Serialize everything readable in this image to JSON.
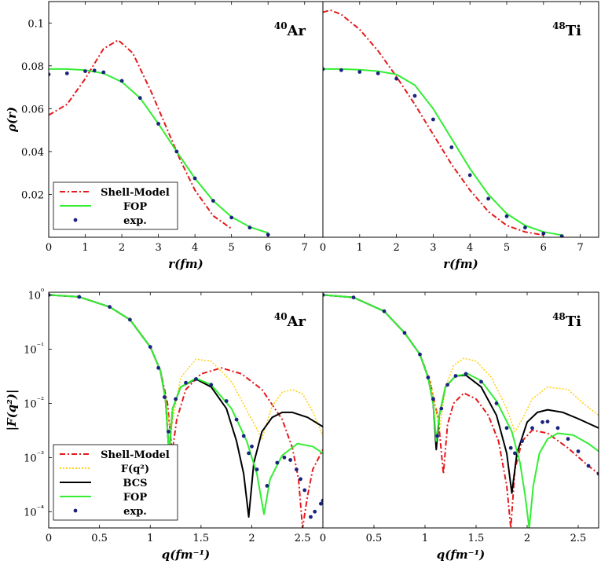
{
  "chart_data": [
    {
      "type": "line",
      "panel": "top-left",
      "nucleus": {
        "mass": "40",
        "symbol": "Ar"
      },
      "xlabel": "r(fm)",
      "ylabel": "ρ(r)",
      "xlim": [
        0,
        7.5
      ],
      "ylim": [
        0,
        0.11
      ],
      "xticks": [
        0,
        1,
        2,
        3,
        4,
        5,
        6,
        7
      ],
      "xtick_labels": [
        "0",
        "1",
        "2",
        "3",
        "4",
        "5",
        "6",
        "7"
      ],
      "yticks": [
        0.02,
        0.04,
        0.06,
        0.08,
        0.1
      ],
      "ytick_labels": [
        "0.02",
        "0.04",
        "0.06",
        "0.08",
        "0.1"
      ],
      "legend": "bottom-left",
      "series": [
        {
          "name": "Shell-Model",
          "style": "dashdot",
          "color": "#e41a1c",
          "x": [
            0,
            0.5,
            1.0,
            1.5,
            1.9,
            2.3,
            2.8,
            3.2,
            3.6,
            4.0,
            4.5,
            5.0
          ],
          "y": [
            0.057,
            0.062,
            0.074,
            0.088,
            0.092,
            0.086,
            0.068,
            0.052,
            0.036,
            0.022,
            0.01,
            0.004
          ]
        },
        {
          "name": "FOP",
          "style": "solid",
          "color": "#33ee33",
          "x": [
            0,
            0.5,
            1.0,
            1.5,
            2.0,
            2.5,
            3.0,
            3.5,
            4.0,
            4.5,
            5.0,
            5.5,
            6.0
          ],
          "y": [
            0.0785,
            0.0785,
            0.078,
            0.0765,
            0.0725,
            0.065,
            0.053,
            0.04,
            0.0275,
            0.017,
            0.0095,
            0.0048,
            0.002
          ]
        },
        {
          "name": "exp.",
          "style": "dots",
          "color": "#1a237e",
          "x": [
            0,
            0.5,
            1.0,
            1.25,
            1.5,
            2.0,
            2.5,
            3.0,
            3.5,
            4.0,
            4.5,
            5.0,
            5.5,
            6.0
          ],
          "y": [
            0.076,
            0.0765,
            0.0775,
            0.0778,
            0.077,
            0.073,
            0.065,
            0.053,
            0.04,
            0.0275,
            0.017,
            0.0092,
            0.0045,
            0.0012
          ]
        }
      ]
    },
    {
      "type": "line",
      "panel": "top-right",
      "nucleus": {
        "mass": "48",
        "symbol": "Ti"
      },
      "xlabel": "r(fm)",
      "xlim": [
        0,
        7.5
      ],
      "ylim": [
        0,
        0.11
      ],
      "xticks": [
        0,
        1,
        2,
        3,
        4,
        5,
        6,
        7
      ],
      "xtick_labels": [
        "0",
        "1",
        "2",
        "3",
        "4",
        "5",
        "6",
        "7"
      ],
      "series": [
        {
          "name": "Shell-Model",
          "style": "dashdot",
          "color": "#e41a1c",
          "x": [
            0,
            0.2,
            0.5,
            1.0,
            1.5,
            2.0,
            2.5,
            3.0,
            3.5,
            4.0,
            4.5,
            5.0,
            5.5,
            6.0
          ],
          "y": [
            0.105,
            0.106,
            0.104,
            0.097,
            0.087,
            0.075,
            0.062,
            0.048,
            0.034,
            0.022,
            0.012,
            0.0055,
            0.0025,
            0.001
          ]
        },
        {
          "name": "FOP",
          "style": "solid",
          "color": "#33ee33",
          "x": [
            0,
            0.5,
            1.0,
            1.5,
            2.0,
            2.5,
            3.0,
            3.5,
            4.0,
            4.5,
            5.0,
            5.5,
            6.0,
            6.5
          ],
          "y": [
            0.0785,
            0.0785,
            0.0782,
            0.0775,
            0.076,
            0.071,
            0.06,
            0.046,
            0.032,
            0.02,
            0.011,
            0.0055,
            0.0025,
            0.001
          ]
        },
        {
          "name": "exp.",
          "style": "dots",
          "color": "#1a237e",
          "x": [
            0,
            0.5,
            1.0,
            1.5,
            2.0,
            2.5,
            3.0,
            3.5,
            4.0,
            4.5,
            5.0,
            5.5,
            6.0,
            6.5
          ],
          "y": [
            0.0785,
            0.078,
            0.0772,
            0.0765,
            0.074,
            0.066,
            0.055,
            0.042,
            0.029,
            0.018,
            0.0098,
            0.0045,
            0.0018,
            0.0005
          ]
        }
      ]
    },
    {
      "type": "line",
      "panel": "bottom-left",
      "nucleus": {
        "mass": "40",
        "symbol": "Ar"
      },
      "xlabel": "q(fm⁻¹)",
      "ylabel": "|F(q²)|",
      "yscale": "log",
      "xlim": [
        0,
        2.7
      ],
      "ylim_log10": [
        -4.3,
        0.05
      ],
      "xticks": [
        0,
        0.5,
        1,
        1.5,
        2,
        2.5
      ],
      "xtick_labels": [
        "0",
        "0.5",
        "1",
        "1.5",
        "2",
        "2.5"
      ],
      "yticks_log10": [
        0,
        -1,
        -2,
        -3,
        -4
      ],
      "ytick_labels": [
        "10⁰",
        "10⁻¹",
        "10⁻²",
        "10⁻³",
        "10⁻⁴"
      ],
      "legend": "bottom-left",
      "series": [
        {
          "name": "Shell-Model",
          "style": "dashdot",
          "color": "#e41a1c",
          "x": [
            0,
            0.3,
            0.6,
            0.8,
            1.0,
            1.1,
            1.17,
            1.215,
            1.26,
            1.35,
            1.5,
            1.7,
            1.9,
            2.1,
            2.3,
            2.4,
            2.46,
            2.5,
            2.55,
            2.6,
            2.7
          ],
          "y": [
            1,
            0.92,
            0.6,
            0.35,
            0.11,
            0.04,
            0.01,
            0.0012,
            0.005,
            0.018,
            0.035,
            0.045,
            0.035,
            0.018,
            0.005,
            0.0015,
            0.0004,
            5e-05,
            0.0002,
            0.0006,
            0.0014
          ]
        },
        {
          "name": "F(q²)",
          "style": "dotted",
          "color": "#ffd21a",
          "x": [
            0,
            0.3,
            0.6,
            0.8,
            1.0,
            1.1,
            1.15,
            1.2,
            1.3,
            1.45,
            1.6,
            1.8,
            2.0,
            2.1,
            2.2,
            2.3,
            2.4,
            2.5,
            2.6,
            2.7
          ],
          "y": [
            1,
            0.92,
            0.6,
            0.35,
            0.11,
            0.04,
            0.012,
            0.003,
            0.03,
            0.065,
            0.06,
            0.025,
            0.005,
            0.0022,
            0.009,
            0.016,
            0.018,
            0.015,
            0.007,
            0.0025
          ]
        },
        {
          "name": "BCS",
          "style": "solid",
          "color": "#000000",
          "x": [
            0,
            0.3,
            0.6,
            0.8,
            1.0,
            1.1,
            1.15,
            1.185,
            1.22,
            1.3,
            1.45,
            1.6,
            1.75,
            1.85,
            1.92,
            1.97,
            2.02,
            2.1,
            2.2,
            2.3,
            2.4,
            2.55,
            2.7
          ],
          "y": [
            1,
            0.92,
            0.6,
            0.35,
            0.11,
            0.04,
            0.012,
            0.0012,
            0.008,
            0.02,
            0.028,
            0.02,
            0.008,
            0.002,
            0.0005,
            8e-05,
            0.0008,
            0.003,
            0.0055,
            0.0068,
            0.0068,
            0.0055,
            0.0037
          ]
        },
        {
          "name": "FOP",
          "style": "solid",
          "color": "#33ee33",
          "x": [
            0,
            0.3,
            0.6,
            0.8,
            1.0,
            1.1,
            1.15,
            1.185,
            1.22,
            1.3,
            1.45,
            1.6,
            1.8,
            1.95,
            2.05,
            2.12,
            2.18,
            2.3,
            2.45,
            2.6,
            2.7
          ],
          "y": [
            1,
            0.92,
            0.6,
            0.35,
            0.11,
            0.04,
            0.012,
            0.0012,
            0.008,
            0.02,
            0.029,
            0.022,
            0.008,
            0.002,
            0.0005,
            9e-05,
            0.0004,
            0.0011,
            0.0018,
            0.0016,
            0.0012
          ]
        },
        {
          "name": "exp.",
          "style": "dots",
          "color": "#1a237e",
          "x": [
            0,
            0.3,
            0.6,
            0.8,
            1.0,
            1.08,
            1.14,
            1.18,
            1.2,
            1.25,
            1.35,
            1.45,
            1.6,
            1.75,
            1.85,
            1.92,
            1.97,
            2.0,
            2.05,
            2.15,
            2.25,
            2.32,
            2.38,
            2.44,
            2.48,
            2.52,
            2.58,
            2.62,
            2.68,
            2.7
          ],
          "y": [
            1,
            0.92,
            0.6,
            0.35,
            0.11,
            0.045,
            0.013,
            0.003,
            0.0005,
            0.012,
            0.024,
            0.028,
            0.022,
            0.011,
            0.005,
            0.0025,
            0.0012,
            0.0016,
            0.0006,
            0.0003,
            0.0008,
            0.001,
            0.0009,
            0.0006,
            0.0004,
            0.00025,
            8e-05,
            0.0001,
            0.00014,
            0.00016
          ]
        }
      ]
    },
    {
      "type": "line",
      "panel": "bottom-right",
      "nucleus": {
        "mass": "48",
        "symbol": "Ti"
      },
      "xlabel": "q(fm⁻¹)",
      "yscale": "log",
      "xlim": [
        0,
        2.7
      ],
      "ylim_log10": [
        -4.3,
        0.05
      ],
      "xticks": [
        0,
        0.5,
        1,
        1.5,
        2,
        2.5
      ],
      "xtick_labels": [
        "0",
        "0.5",
        "1",
        "1.5",
        "2",
        "2.5"
      ],
      "series": [
        {
          "name": "Shell-Model",
          "style": "dashdot",
          "color": "#e41a1c",
          "x": [
            0,
            0.3,
            0.6,
            0.8,
            0.95,
            1.05,
            1.13,
            1.18,
            1.22,
            1.28,
            1.38,
            1.5,
            1.62,
            1.72,
            1.8,
            1.84,
            1.88,
            1.95,
            2.05,
            2.2,
            2.4,
            2.6,
            2.7
          ],
          "y": [
            1,
            0.9,
            0.5,
            0.2,
            0.08,
            0.025,
            0.005,
            0.0005,
            0.004,
            0.01,
            0.0155,
            0.012,
            0.006,
            0.002,
            0.0003,
            5e-05,
            0.0006,
            0.002,
            0.0032,
            0.0028,
            0.0015,
            0.0007,
            0.0005
          ]
        },
        {
          "name": "F(q²)",
          "style": "dotted",
          "color": "#ffd21a",
          "x": [
            0,
            0.3,
            0.6,
            0.8,
            0.95,
            1.05,
            1.1,
            1.14,
            1.2,
            1.28,
            1.38,
            1.5,
            1.65,
            1.8,
            1.88,
            1.95,
            2.05,
            2.2,
            2.4,
            2.55,
            2.7
          ],
          "y": [
            1,
            0.9,
            0.5,
            0.2,
            0.08,
            0.025,
            0.01,
            0.003,
            0.02,
            0.05,
            0.068,
            0.06,
            0.03,
            0.008,
            0.003,
            0.005,
            0.012,
            0.02,
            0.018,
            0.01,
            0.006
          ]
        },
        {
          "name": "BCS",
          "style": "solid",
          "color": "#000000",
          "x": [
            0,
            0.3,
            0.6,
            0.8,
            0.95,
            1.03,
            1.08,
            1.11,
            1.14,
            1.2,
            1.3,
            1.4,
            1.55,
            1.7,
            1.8,
            1.85,
            1.9,
            2.0,
            2.1,
            2.2,
            2.35,
            2.5,
            2.7
          ],
          "y": [
            1,
            0.9,
            0.5,
            0.2,
            0.08,
            0.03,
            0.01,
            0.0014,
            0.006,
            0.02,
            0.032,
            0.033,
            0.02,
            0.006,
            0.0012,
            0.00022,
            0.0012,
            0.0045,
            0.0068,
            0.0076,
            0.0068,
            0.0052,
            0.0035
          ]
        },
        {
          "name": "FOP",
          "style": "solid",
          "color": "#33ee33",
          "x": [
            0,
            0.3,
            0.6,
            0.8,
            0.95,
            1.03,
            1.08,
            1.11,
            1.14,
            1.2,
            1.3,
            1.42,
            1.55,
            1.7,
            1.85,
            1.93,
            1.98,
            2.02,
            2.06,
            2.12,
            2.2,
            2.3,
            2.45,
            2.6,
            2.7
          ],
          "y": [
            1,
            0.9,
            0.5,
            0.2,
            0.08,
            0.03,
            0.01,
            0.002,
            0.006,
            0.02,
            0.032,
            0.035,
            0.026,
            0.011,
            0.003,
            0.0008,
            0.0002,
            5e-05,
            0.0003,
            0.0012,
            0.0022,
            0.0028,
            0.0026,
            0.0018,
            0.0013
          ]
        },
        {
          "name": "exp.",
          "style": "dots",
          "color": "#1a237e",
          "x": [
            0,
            0.3,
            0.6,
            0.8,
            0.95,
            1.03,
            1.08,
            1.12,
            1.16,
            1.22,
            1.3,
            1.4,
            1.55,
            1.7,
            1.8,
            1.84,
            1.88,
            1.95,
            2.05,
            2.15,
            2.2,
            2.3,
            2.4,
            2.5,
            2.6,
            2.7
          ],
          "y": [
            1,
            0.9,
            0.5,
            0.2,
            0.08,
            0.03,
            0.012,
            0.0025,
            0.008,
            0.022,
            0.032,
            0.035,
            0.025,
            0.01,
            0.0035,
            0.0015,
            0.0012,
            0.002,
            0.0035,
            0.0045,
            0.0046,
            0.0035,
            0.0022,
            0.0013,
            0.0007,
            0.0005
          ]
        }
      ]
    }
  ]
}
